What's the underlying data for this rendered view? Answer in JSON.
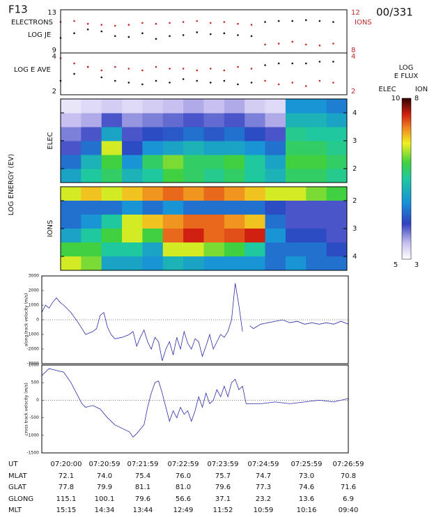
{
  "header": {
    "satellite": "F13",
    "date": "00/331",
    "energy_label": "LOG ENERGY (EV)"
  },
  "colorbar": {
    "title": "LOG",
    "subtitle": "E FLUX",
    "labels": [
      "ELEC",
      "ION"
    ]
  },
  "chart_data": [
    {
      "type": "scatter",
      "labels": [
        "ELECTRONS",
        "LOG JE"
      ],
      "xlim": [
        0,
        420
      ],
      "ylim": [
        8.7,
        13.3
      ],
      "yticks": [
        9,
        13
      ],
      "y2lim": [
        7.7,
        12.3
      ],
      "y2ticks": [
        8,
        12
      ],
      "x": [
        0,
        20,
        40,
        60,
        80,
        100,
        120,
        140,
        160,
        180,
        200,
        220,
        240,
        260,
        280,
        300,
        320,
        340,
        360,
        380,
        400
      ],
      "series": [
        {
          "name": "ELECTRONS",
          "color": "#111111",
          "values": [
            10.3,
            10.8,
            11.2,
            11.0,
            10.5,
            10.4,
            10.8,
            10.2,
            10.5,
            10.6,
            10.9,
            10.7,
            10.8,
            10.6,
            10.5,
            12.0,
            12.1,
            12.1,
            12.2,
            12.1,
            12.0
          ]
        },
        {
          "name": "IONS",
          "color": "#c0282a",
          "axis": "y2",
          "values": [
            11.0,
            11.1,
            10.8,
            10.7,
            10.6,
            10.7,
            10.9,
            10.8,
            10.9,
            11.0,
            11.1,
            10.9,
            11.0,
            10.8,
            10.7,
            8.6,
            8.7,
            8.9,
            8.6,
            8.5,
            8.7
          ]
        }
      ]
    },
    {
      "type": "scatter",
      "labels": [
        "LOG E AVE"
      ],
      "xlim": [
        0,
        420
      ],
      "ylim": [
        1.8,
        4.2
      ],
      "yticks": [
        2,
        4
      ],
      "y2lim": [
        1.8,
        4.2
      ],
      "y2ticks": [
        2,
        4
      ],
      "x": [
        0,
        20,
        40,
        60,
        80,
        100,
        120,
        140,
        160,
        180,
        200,
        220,
        240,
        260,
        280,
        300,
        320,
        340,
        360,
        380,
        400
      ],
      "series": [
        {
          "color": "#111111",
          "values": [
            2.6,
            3.0,
            3.4,
            2.8,
            2.6,
            2.5,
            2.4,
            2.6,
            2.5,
            2.7,
            2.6,
            2.5,
            2.6,
            2.4,
            2.5,
            3.5,
            3.6,
            3.6,
            3.6,
            3.7,
            3.7
          ]
        },
        {
          "color": "#c0282a",
          "axis": "y2",
          "values": [
            3.9,
            3.6,
            3.4,
            3.2,
            3.4,
            3.3,
            3.2,
            3.4,
            3.3,
            3.3,
            3.2,
            3.3,
            3.2,
            3.4,
            3.3,
            2.6,
            2.4,
            2.5,
            2.3,
            2.6,
            2.5
          ]
        }
      ]
    },
    {
      "type": "heatmap",
      "labels": [
        "ELEC"
      ],
      "xlim": [
        0,
        420
      ],
      "ylim": [
        1.5,
        4.5
      ],
      "yticks": [
        2,
        3,
        4
      ],
      "clim": [
        5,
        10
      ],
      "xbins": [
        0,
        30,
        60,
        90,
        120,
        150,
        180,
        210,
        240,
        270,
        300,
        330,
        360,
        390,
        420
      ],
      "ybins": [
        1.5,
        2,
        2.5,
        3,
        3.5,
        4,
        4.5
      ],
      "z": [
        [
          7.0,
          7.5,
          7.8,
          7.2,
          7.5,
          8.0,
          7.8,
          7.6,
          7.8,
          7.5,
          7.2,
          7.8,
          7.8,
          7.6
        ],
        [
          6.5,
          7.2,
          8.0,
          6.8,
          7.8,
          8.2,
          7.8,
          7.8,
          8.0,
          7.5,
          7.0,
          8.0,
          8.0,
          7.8
        ],
        [
          6.0,
          6.5,
          8.5,
          6.2,
          6.8,
          7.0,
          7.2,
          7.0,
          7.0,
          6.8,
          6.5,
          7.8,
          7.8,
          7.6
        ],
        [
          5.8,
          6.0,
          7.0,
          6.0,
          6.2,
          6.3,
          6.5,
          6.3,
          6.5,
          6.2,
          6.0,
          7.6,
          7.5,
          7.5
        ],
        [
          5.5,
          5.6,
          6.0,
          5.7,
          5.8,
          5.9,
          6.0,
          5.9,
          6.0,
          5.8,
          5.6,
          7.2,
          7.2,
          7.0
        ],
        [
          5.2,
          5.3,
          5.4,
          5.3,
          5.4,
          5.5,
          5.6,
          5.5,
          5.6,
          5.4,
          5.3,
          6.8,
          6.8,
          6.6
        ]
      ]
    },
    {
      "type": "heatmap",
      "labels": [
        "IONS"
      ],
      "xlim": [
        0,
        420
      ],
      "ylim": [
        4.5,
        1.5
      ],
      "yticks": [
        2,
        3,
        4
      ],
      "clim": [
        3,
        8
      ],
      "xbins": [
        0,
        30,
        60,
        90,
        120,
        150,
        180,
        210,
        240,
        270,
        300,
        330,
        360,
        390,
        420
      ],
      "ybins": [
        1.5,
        2,
        2.5,
        3,
        3.5,
        4,
        4.5
      ],
      "z": [
        [
          6.5,
          6.8,
          6.5,
          6.8,
          7.0,
          7.2,
          7.0,
          7.2,
          7.0,
          6.8,
          6.5,
          6.5,
          6.2,
          6.0
        ],
        [
          4.5,
          4.5,
          4.5,
          4.8,
          4.5,
          4.8,
          4.5,
          4.5,
          4.5,
          4.5,
          4.2,
          4.0,
          4.0,
          4.0
        ],
        [
          4.5,
          4.8,
          5.5,
          6.5,
          6.8,
          7.0,
          7.2,
          7.2,
          7.0,
          6.8,
          4.5,
          4.0,
          4.0,
          4.0
        ],
        [
          5.0,
          5.5,
          6.0,
          6.5,
          6.0,
          7.2,
          7.5,
          7.2,
          7.3,
          7.5,
          4.8,
          4.2,
          4.2,
          4.0
        ],
        [
          6.0,
          6.0,
          5.5,
          5.5,
          5.0,
          6.5,
          6.5,
          6.2,
          6.0,
          5.5,
          4.5,
          4.5,
          4.5,
          4.2
        ],
        [
          6.5,
          6.2,
          5.0,
          5.0,
          4.8,
          5.2,
          5.0,
          4.8,
          4.8,
          4.8,
          4.5,
          4.8,
          4.5,
          4.5
        ]
      ]
    },
    {
      "type": "line",
      "ylabel": "along track velocity (m/s)",
      "xlim": [
        0,
        420
      ],
      "ylim": [
        -3000,
        3000
      ],
      "yticks": [
        -3000,
        -2000,
        -1000,
        0,
        1000,
        2000,
        3000
      ],
      "ref_line": 0,
      "x": [
        0,
        5,
        10,
        15,
        20,
        25,
        30,
        40,
        50,
        55,
        60,
        70,
        75,
        80,
        85,
        90,
        95,
        100,
        110,
        120,
        125,
        130,
        135,
        140,
        145,
        150,
        155,
        160,
        165,
        170,
        175,
        180,
        185,
        190,
        195,
        200,
        205,
        210,
        215,
        220,
        225,
        230,
        235,
        240,
        245,
        250,
        255,
        260,
        265,
        270,
        275,
        280,
        285,
        290,
        300,
        310,
        320,
        330,
        340,
        350,
        360,
        370,
        380,
        390,
        400,
        410,
        420
      ],
      "series": [
        {
          "color": "#2a2aa8",
          "values": [
            500,
            1000,
            800,
            1200,
            1500,
            1200,
            1000,
            500,
            -200,
            -600,
            -1000,
            -800,
            -600,
            300,
            500,
            -500,
            -1000,
            -1300,
            -1200,
            -1000,
            -800,
            -1800,
            -1200,
            -700,
            -1500,
            -2000,
            -1200,
            -1500,
            -2800,
            -2000,
            -1500,
            -2400,
            -1200,
            -2000,
            -800,
            -1600,
            -2000,
            -1300,
            -1500,
            -2500,
            -1800,
            -1000,
            -2000,
            -1500,
            -1000,
            -1200,
            -800,
            0,
            2500,
            1000,
            -800,
            null,
            -400,
            -600,
            -300,
            -200,
            -100,
            0,
            -200,
            -100,
            -300,
            -200,
            -300,
            -200,
            -300,
            -100,
            -300
          ]
        }
      ]
    },
    {
      "type": "line",
      "ylabel": "cross track velocity (m/s)",
      "xlim": [
        0,
        420
      ],
      "ylim": [
        -1500,
        1000
      ],
      "yticks": [
        -1500,
        -1000,
        -500,
        0,
        500,
        1000
      ],
      "ref_line": 0,
      "x": [
        0,
        10,
        20,
        30,
        40,
        50,
        55,
        60,
        70,
        80,
        90,
        100,
        110,
        120,
        125,
        130,
        140,
        145,
        150,
        155,
        160,
        165,
        170,
        175,
        180,
        185,
        190,
        195,
        200,
        205,
        210,
        215,
        220,
        225,
        230,
        235,
        240,
        245,
        250,
        255,
        260,
        265,
        270,
        275,
        280,
        285,
        300,
        320,
        340,
        360,
        380,
        400,
        420
      ],
      "series": [
        {
          "color": "#2a2aa8",
          "values": [
            700,
            900,
            850,
            800,
            500,
            100,
            -100,
            -200,
            -150,
            -250,
            -500,
            -700,
            -800,
            -900,
            -1050,
            -950,
            -700,
            -200,
            200,
            500,
            550,
            200,
            -200,
            -600,
            -300,
            -500,
            -200,
            -400,
            -300,
            -600,
            -300,
            100,
            -200,
            200,
            -100,
            0,
            300,
            100,
            400,
            100,
            500,
            600,
            300,
            400,
            -100,
            -100,
            -100,
            -50,
            -100,
            -50,
            0,
            -50,
            50
          ]
        }
      ]
    }
  ],
  "table": {
    "rows": [
      [
        "UT",
        "07:20:00",
        "07:20:59",
        "07:21:59",
        "07:22:59",
        "07:23:59",
        "07:24:59",
        "07:25:59",
        "07:26:59"
      ],
      [
        "MLAT",
        "72.1",
        "74.0",
        "75.4",
        "76.0",
        "75.7",
        "74.7",
        "73.0",
        "70.8"
      ],
      [
        "GLAT",
        "77.8",
        "79.9",
        "81.1",
        "81.0",
        "79.6",
        "77.3",
        "74.6",
        "71.6"
      ],
      [
        "GLONG",
        "115.1",
        "100.1",
        "79.6",
        "56.6",
        "37.1",
        "23.2",
        "13.6",
        "6.9"
      ],
      [
        "MLT",
        "15:15",
        "14:34",
        "13:44",
        "12:49",
        "11:52",
        "10:59",
        "10:16",
        "09:40"
      ]
    ]
  }
}
